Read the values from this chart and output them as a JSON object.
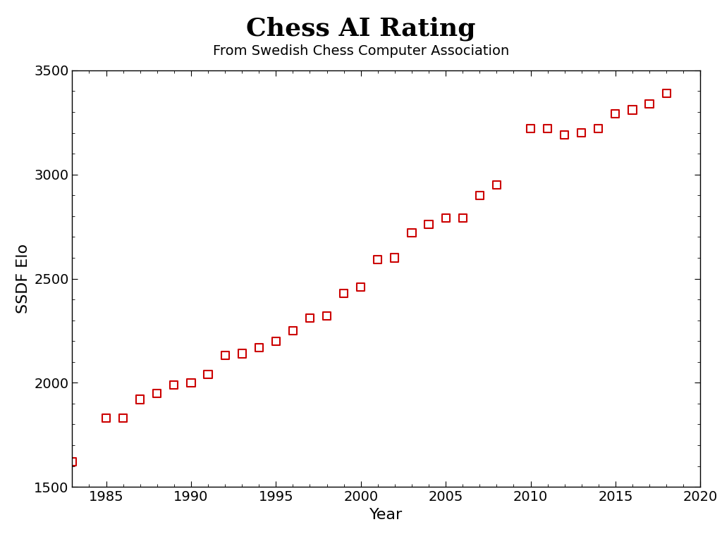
{
  "title": "Chess AI Rating",
  "subtitle": "From Swedish Chess Computer Association",
  "xlabel": "Year",
  "ylabel": "SSDF Elo",
  "xlim": [
    1983,
    2020
  ],
  "ylim": [
    1500,
    3500
  ],
  "xticks": [
    1985,
    1990,
    1995,
    2000,
    2005,
    2010,
    2015,
    2020
  ],
  "yticks": [
    1500,
    2000,
    2500,
    3000,
    3500
  ],
  "years": [
    1983,
    1985,
    1986,
    1987,
    1988,
    1989,
    1990,
    1991,
    1992,
    1993,
    1994,
    1995,
    1996,
    1997,
    1998,
    1999,
    2000,
    2001,
    2002,
    2003,
    2004,
    2005,
    2006,
    2007,
    2008,
    2010,
    2011,
    2012,
    2013,
    2014,
    2015,
    2016,
    2017,
    2018
  ],
  "elos": [
    1620,
    1830,
    1830,
    1920,
    1950,
    1990,
    2000,
    2040,
    2130,
    2140,
    2170,
    2200,
    2250,
    2310,
    2320,
    2430,
    2460,
    2590,
    2600,
    2720,
    2760,
    2790,
    2790,
    2900,
    2950,
    3220,
    3220,
    3190,
    3200,
    3220,
    3290,
    3310,
    3340,
    3390
  ],
  "marker_color": "#cc0000",
  "marker": "s",
  "marker_size": 8,
  "marker_facecolor": "none",
  "background_color": "#ffffff",
  "title_fontsize": 26,
  "subtitle_fontsize": 14,
  "label_fontsize": 16,
  "tick_fontsize": 14
}
